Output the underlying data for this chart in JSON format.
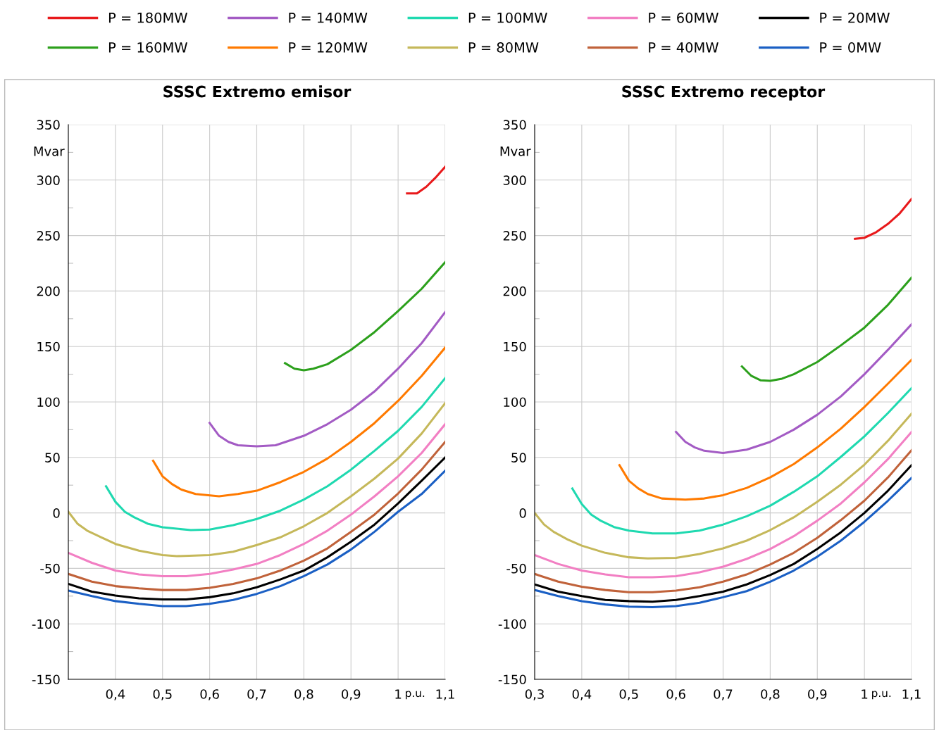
{
  "chart_data": [
    {
      "type": "line",
      "title": "SSSC Extremo emisor",
      "ylabel": "Mvar",
      "xlabel": "p.u.",
      "legend": "top",
      "grid": true,
      "line_style": "solid",
      "marker": "none",
      "xlim": [
        0.3,
        1.1
      ],
      "ylim": [
        -150,
        350
      ],
      "xticks": [
        {
          "value": 0.4,
          "label": "0,4"
        },
        {
          "value": 0.5,
          "label": "0,5"
        },
        {
          "value": 0.6,
          "label": "0,6"
        },
        {
          "value": 0.7,
          "label": "0,7"
        },
        {
          "value": 0.8,
          "label": "0,8"
        },
        {
          "value": 0.9,
          "label": "0,9"
        },
        1,
        {
          "value": 1.1,
          "label": "1,1"
        }
      ],
      "yticks": [
        -150,
        {
          "value": -125,
          "label": null
        },
        -100,
        {
          "value": -75,
          "label": null
        },
        -50,
        {
          "value": -25,
          "label": null
        },
        0,
        {
          "value": 25,
          "label": null
        },
        50,
        {
          "value": 75,
          "label": null
        },
        100,
        {
          "value": 125,
          "label": null
        },
        150,
        {
          "value": 175,
          "label": null
        },
        200,
        {
          "value": 225,
          "label": null
        },
        250,
        {
          "value": 275,
          "label": null
        },
        300,
        {
          "value": 325,
          "label": null
        },
        350
      ],
      "series": [
        {
          "name": "P = 180MW",
          "color": "#e8191b",
          "x": [
            1.019,
            1.04,
            1.06,
            1.079,
            1.1
          ],
          "values": [
            288,
            288,
            294,
            302,
            312
          ]
        },
        {
          "name": "P = 160MW",
          "color": "#2ca01c",
          "x": [
            0.76,
            0.78,
            0.8,
            0.82,
            0.85,
            0.9,
            0.95,
            1.0,
            1.05,
            1.1
          ],
          "values": [
            135,
            130,
            128.5,
            130,
            134,
            147,
            163,
            182,
            202,
            226
          ]
        },
        {
          "name": "P = 140MW",
          "color": "#a35bc4",
          "x": [
            0.6,
            0.62,
            0.64,
            0.66,
            0.7,
            0.74,
            0.8,
            0.85,
            0.9,
            0.95,
            1.0,
            1.05,
            1.1
          ],
          "values": [
            81,
            69.5,
            64,
            61,
            60,
            61,
            69.5,
            80,
            93,
            109.5,
            130,
            153,
            181
          ]
        },
        {
          "name": "P = 120MW",
          "color": "#ff7a00",
          "x": [
            0.48,
            0.5,
            0.52,
            0.54,
            0.57,
            0.62,
            0.66,
            0.7,
            0.75,
            0.8,
            0.85,
            0.9,
            0.95,
            1.0,
            1.05,
            1.1
          ],
          "values": [
            47,
            33,
            26,
            21,
            17,
            15,
            17,
            20,
            27.7,
            37,
            49,
            64,
            81,
            101,
            123.5,
            149
          ]
        },
        {
          "name": "P = 100MW",
          "color": "#1fd9b0",
          "x": [
            0.38,
            0.4,
            0.42,
            0.44,
            0.47,
            0.5,
            0.56,
            0.6,
            0.65,
            0.7,
            0.75,
            0.8,
            0.85,
            0.9,
            0.95,
            1.0,
            1.05,
            1.1
          ],
          "values": [
            24,
            10,
            1,
            -4,
            -10,
            -13,
            -15.5,
            -15,
            -11,
            -5.5,
            2,
            12,
            24,
            39,
            56,
            74,
            95.5,
            121.5
          ]
        },
        {
          "name": "P = 80MW",
          "color": "#c5b85a",
          "x": [
            0.3,
            0.32,
            0.34,
            0.37,
            0.4,
            0.45,
            0.5,
            0.53,
            0.6,
            0.65,
            0.7,
            0.75,
            0.8,
            0.85,
            0.9,
            0.95,
            1.0,
            1.05,
            1.1
          ],
          "values": [
            1,
            -10,
            -16,
            -22,
            -28,
            -34,
            -38,
            -39,
            -38,
            -35,
            -29,
            -22,
            -12,
            0,
            15,
            31,
            49,
            71.5,
            99
          ]
        },
        {
          "name": "P = 60MW",
          "color": "#f27fc3",
          "x": [
            0.3,
            0.35,
            0.4,
            0.45,
            0.5,
            0.55,
            0.6,
            0.65,
            0.7,
            0.75,
            0.8,
            0.85,
            0.9,
            0.95,
            1.0,
            1.05,
            1.1
          ],
          "values": [
            -36,
            -45,
            -52,
            -55.5,
            -57,
            -57,
            -55,
            -51,
            -46,
            -38,
            -28,
            -16,
            -1.5,
            15,
            33,
            54,
            80
          ]
        },
        {
          "name": "P = 40MW",
          "color": "#c0623a",
          "x": [
            0.3,
            0.35,
            0.4,
            0.45,
            0.5,
            0.55,
            0.6,
            0.65,
            0.7,
            0.75,
            0.8,
            0.85,
            0.9,
            0.95,
            1.0,
            1.05,
            1.1
          ],
          "values": [
            -55,
            -62,
            -66,
            -68,
            -69.5,
            -69.5,
            -67.5,
            -64,
            -59,
            -52,
            -43,
            -32,
            -17,
            -1.5,
            17.5,
            39,
            64
          ]
        },
        {
          "name": "P = 20MW",
          "color": "#000000",
          "x": [
            0.3,
            0.35,
            0.4,
            0.45,
            0.5,
            0.55,
            0.6,
            0.65,
            0.7,
            0.75,
            0.8,
            0.85,
            0.9,
            0.95,
            1.0,
            1.05,
            1.1
          ],
          "values": [
            -64,
            -71,
            -74.5,
            -77,
            -78,
            -78,
            -76,
            -72.5,
            -67,
            -60,
            -52,
            -40,
            -26,
            -10.5,
            8.5,
            29,
            50
          ]
        },
        {
          "name": "P = 0MW",
          "color": "#1a5fc4",
          "x": [
            0.3,
            0.35,
            0.4,
            0.45,
            0.5,
            0.55,
            0.6,
            0.65,
            0.7,
            0.75,
            0.8,
            0.85,
            0.9,
            0.95,
            1.0,
            1.05,
            1.1
          ],
          "values": [
            -70,
            -75,
            -79.5,
            -82,
            -84,
            -84,
            -82,
            -78.5,
            -73,
            -66,
            -57,
            -46.5,
            -33,
            -17,
            1,
            17,
            38
          ]
        }
      ]
    },
    {
      "type": "line",
      "title": "SSSC Extremo receptor",
      "ylabel": "Mvar",
      "xlabel": "p.u.",
      "grid": true,
      "line_style": "solid",
      "marker": "none",
      "xlim": [
        0.3,
        1.1
      ],
      "ylim": [
        -150,
        350
      ],
      "xticks": [
        {
          "value": 0.3,
          "label": "0,3"
        },
        {
          "value": 0.4,
          "label": "0,4"
        },
        {
          "value": 0.5,
          "label": "0,5"
        },
        {
          "value": 0.6,
          "label": "0,6"
        },
        {
          "value": 0.7,
          "label": "0,7"
        },
        {
          "value": 0.8,
          "label": "0,8"
        },
        {
          "value": 0.9,
          "label": "0,9"
        },
        1,
        {
          "value": 1.1,
          "label": "1,1"
        }
      ],
      "yticks": [
        -150,
        {
          "value": -125,
          "label": null
        },
        -100,
        {
          "value": -75,
          "label": null
        },
        -50,
        {
          "value": -25,
          "label": null
        },
        0,
        {
          "value": 25,
          "label": null
        },
        50,
        {
          "value": 75,
          "label": null
        },
        100,
        {
          "value": 125,
          "label": null
        },
        150,
        {
          "value": 175,
          "label": null
        },
        200,
        {
          "value": 225,
          "label": null
        },
        250,
        {
          "value": 275,
          "label": null
        },
        300,
        {
          "value": 325,
          "label": null
        },
        350
      ],
      "series": [
        {
          "color": "#e8191b",
          "x": [
            0.98,
            1.0,
            1.025,
            1.05,
            1.075,
            1.1
          ],
          "values": [
            247,
            248,
            253,
            260.5,
            270,
            283
          ]
        },
        {
          "color": "#2ca01c",
          "x": [
            0.74,
            0.76,
            0.78,
            0.8,
            0.825,
            0.85,
            0.9,
            0.95,
            1.0,
            1.05,
            1.1
          ],
          "values": [
            132,
            123.5,
            119.5,
            119,
            121,
            125,
            136,
            151,
            167,
            187.5,
            212
          ]
        },
        {
          "color": "#a35bc4",
          "x": [
            0.6,
            0.62,
            0.64,
            0.66,
            0.7,
            0.75,
            0.8,
            0.85,
            0.9,
            0.95,
            1.0,
            1.05,
            1.1
          ],
          "values": [
            73,
            64,
            59,
            56,
            54,
            57,
            64,
            75,
            88.5,
            105,
            125,
            147,
            170
          ]
        },
        {
          "color": "#ff7a00",
          "x": [
            0.48,
            0.5,
            0.52,
            0.54,
            0.57,
            0.62,
            0.66,
            0.7,
            0.75,
            0.8,
            0.85,
            0.9,
            0.95,
            1.0,
            1.05,
            1.1
          ],
          "values": [
            43,
            29,
            22,
            17,
            13,
            12,
            13,
            16,
            22.5,
            32,
            44,
            59,
            76,
            95.5,
            116.5,
            138
          ]
        },
        {
          "color": "#1fd9b0",
          "x": [
            0.38,
            0.4,
            0.42,
            0.44,
            0.47,
            0.5,
            0.55,
            0.6,
            0.65,
            0.7,
            0.75,
            0.8,
            0.85,
            0.9,
            0.95,
            1.0,
            1.05,
            1.1
          ],
          "values": [
            22,
            8,
            -1.5,
            -7,
            -13,
            -16,
            -18.5,
            -18.5,
            -16,
            -10.5,
            -3,
            6.5,
            19,
            33,
            50.5,
            69,
            90,
            112.5
          ]
        },
        {
          "color": "#c5b85a",
          "x": [
            0.3,
            0.32,
            0.34,
            0.37,
            0.4,
            0.45,
            0.5,
            0.54,
            0.6,
            0.65,
            0.7,
            0.75,
            0.8,
            0.85,
            0.9,
            0.95,
            1.0,
            1.05,
            1.1
          ],
          "values": [
            0,
            -10.5,
            -17,
            -24,
            -29.5,
            -36,
            -40,
            -41,
            -40.5,
            -37,
            -32,
            -25,
            -15.5,
            -4,
            10,
            25.5,
            43.5,
            65,
            89.5
          ]
        },
        {
          "color": "#f27fc3",
          "x": [
            0.3,
            0.35,
            0.4,
            0.45,
            0.5,
            0.55,
            0.6,
            0.65,
            0.7,
            0.75,
            0.8,
            0.85,
            0.9,
            0.95,
            1.0,
            1.05,
            1.1
          ],
          "values": [
            -38,
            -46,
            -52,
            -55.5,
            -58,
            -58,
            -57,
            -53.5,
            -48.5,
            -41.5,
            -32.5,
            -21,
            -7,
            8.5,
            27.5,
            48.5,
            73
          ]
        },
        {
          "color": "#c0623a",
          "x": [
            0.3,
            0.35,
            0.4,
            0.45,
            0.5,
            0.55,
            0.6,
            0.65,
            0.7,
            0.75,
            0.8,
            0.85,
            0.9,
            0.95,
            1.0,
            1.05,
            1.1
          ],
          "values": [
            -55,
            -62,
            -66.5,
            -69.5,
            -71.5,
            -71.5,
            -70,
            -67,
            -62,
            -55.5,
            -46.5,
            -36,
            -22.5,
            -6.5,
            11,
            32,
            56.5
          ]
        },
        {
          "color": "#000000",
          "x": [
            0.3,
            0.35,
            0.4,
            0.45,
            0.5,
            0.55,
            0.6,
            0.65,
            0.7,
            0.75,
            0.8,
            0.85,
            0.9,
            0.95,
            1.0,
            1.05,
            1.1
          ],
          "values": [
            -64.5,
            -71,
            -75,
            -78.5,
            -79.5,
            -80,
            -78.5,
            -75,
            -71,
            -64.5,
            -56,
            -46,
            -32.5,
            -17.5,
            0,
            20,
            43
          ]
        },
        {
          "color": "#1a5fc4",
          "x": [
            0.3,
            0.35,
            0.4,
            0.45,
            0.5,
            0.55,
            0.6,
            0.65,
            0.7,
            0.75,
            0.8,
            0.85,
            0.9,
            0.95,
            1.0,
            1.05,
            1.1
          ],
          "values": [
            -69.5,
            -75,
            -79.5,
            -82.5,
            -84.5,
            -85,
            -84,
            -81,
            -76,
            -70.5,
            -62,
            -52,
            -39.5,
            -25,
            -8,
            11,
            31.5
          ]
        }
      ]
    }
  ]
}
